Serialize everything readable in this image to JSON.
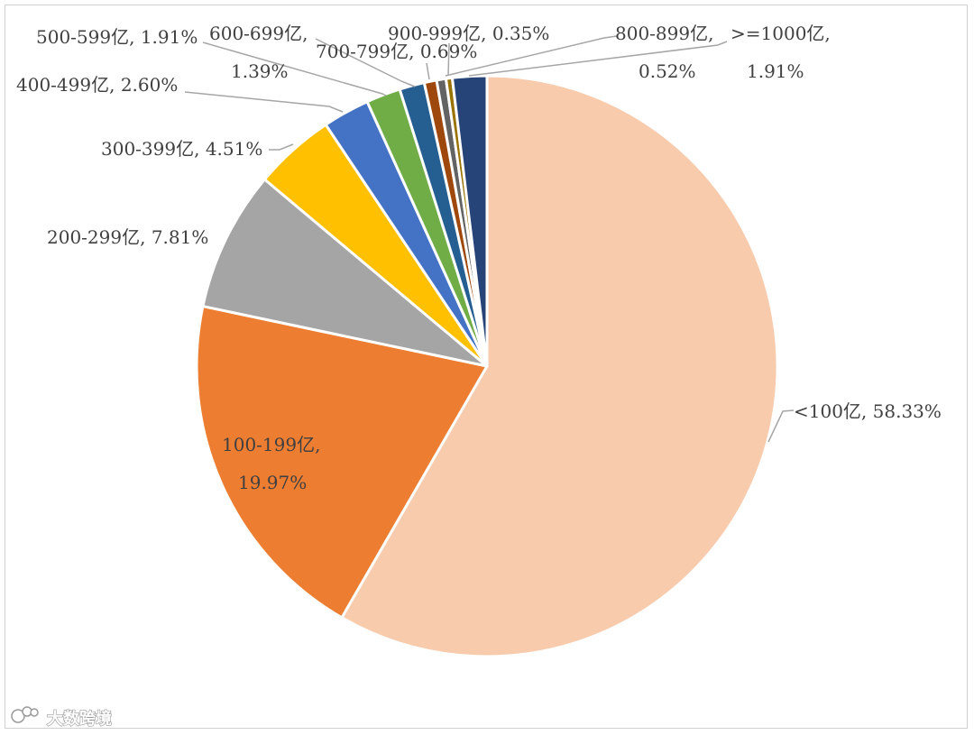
{
  "chart_data": {
    "type": "pie",
    "start_angle_deg": 0,
    "slices": [
      {
        "category": "<100亿",
        "value": 58.33,
        "display": "58.33%",
        "color": "#F7CBAC"
      },
      {
        "category": "100-199亿",
        "value": 19.97,
        "display": "19.97%",
        "color": "#ED7D31"
      },
      {
        "category": "200-299亿",
        "value": 7.81,
        "display": "7.81%",
        "color": "#A5A5A5"
      },
      {
        "category": "300-399亿",
        "value": 4.51,
        "display": "4.51%",
        "color": "#FFC000"
      },
      {
        "category": "400-499亿",
        "value": 2.6,
        "display": "2.60%",
        "color": "#4472C4"
      },
      {
        "category": "500-599亿",
        "value": 1.91,
        "display": "1.91%",
        "color": "#70AD47"
      },
      {
        "category": "600-699亿",
        "value": 1.39,
        "display": "1.39%",
        "color": "#255E91"
      },
      {
        "category": "700-799亿",
        "value": 0.69,
        "display": "0.69%",
        "color": "#9E480E"
      },
      {
        "category": "800-899亿",
        "value": 0.52,
        "display": "0.52%",
        "color": "#636363"
      },
      {
        "category": "900-999亿",
        "value": 0.35,
        "display": "0.35%",
        "color": "#997300"
      },
      {
        "category": ">=1000亿",
        "value": 1.91,
        "display": "1.91%",
        "color": "#264478"
      }
    ]
  },
  "watermark": {
    "text": "大数跨境"
  }
}
